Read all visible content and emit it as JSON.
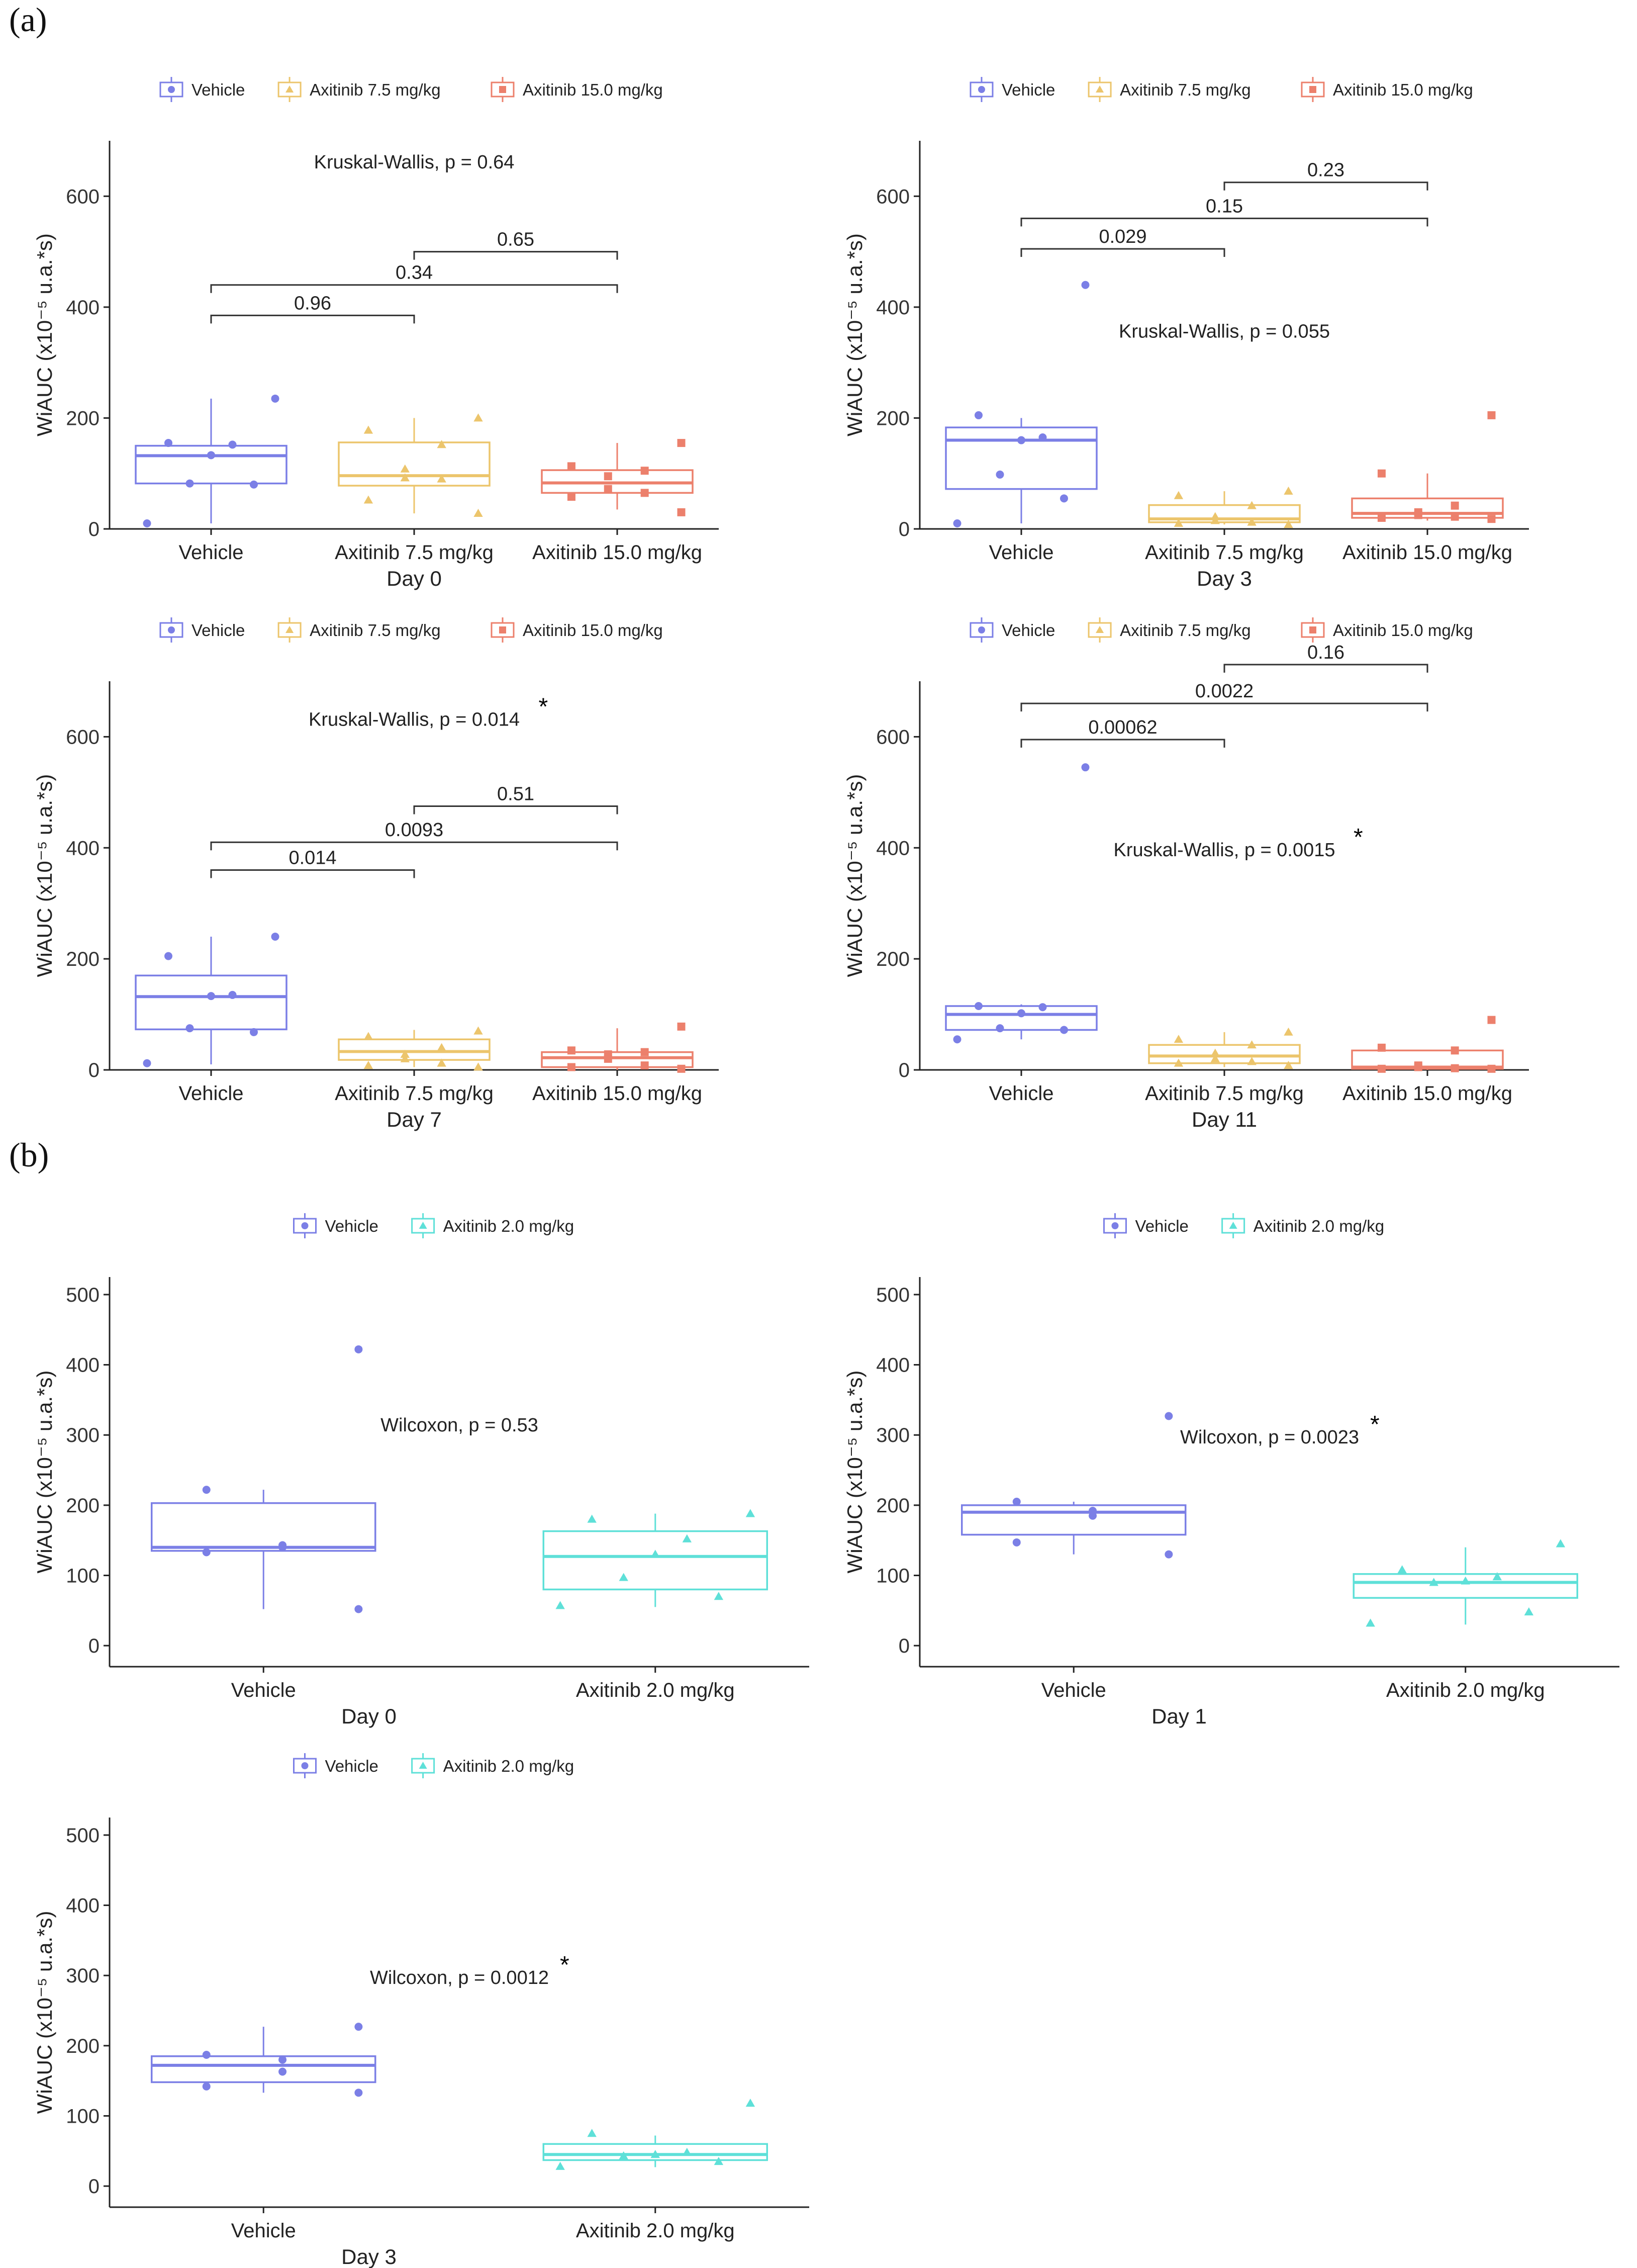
{
  "panels": [
    {
      "label": "(a)"
    },
    {
      "label": "(b)"
    }
  ],
  "chart_data": [
    {
      "type": "box",
      "panel": "a",
      "title": "",
      "xlabel": "Day 0",
      "ylabel": "WiAUC (x10⁻⁵ u.a.*s)",
      "ylim": [
        0,
        700
      ],
      "yticks": [
        0,
        200,
        400,
        600
      ],
      "legend_position": "top",
      "legend": [
        "Vehicle",
        "Axitinib 7.5 mg/kg",
        "Axitinib 15.0 mg/kg"
      ],
      "categories": [
        "Vehicle",
        "Axitinib 7.5 mg/kg",
        "Axitinib 15.0 mg/kg"
      ],
      "series_colors": [
        "#7b7fe6",
        "#ecc56c",
        "#ec806c"
      ],
      "markers": [
        "circle",
        "triangle",
        "square"
      ],
      "boxes": [
        {
          "q1": 82,
          "median": 132,
          "q3": 150,
          "whisker_low": 10,
          "whisker_high": 235,
          "points": [
            235,
            155,
            152,
            133,
            82,
            80,
            10
          ]
        },
        {
          "q1": 78,
          "median": 96,
          "q3": 156,
          "whisker_low": 28,
          "whisker_high": 200,
          "points": [
            200,
            178,
            152,
            108,
            92,
            90,
            52,
            28
          ]
        },
        {
          "q1": 65,
          "median": 83,
          "q3": 106,
          "whisker_low": 35,
          "whisker_high": 155,
          "points": [
            155,
            113,
            105,
            95,
            72,
            65,
            58,
            30
          ]
        }
      ],
      "test": "Kruskal-Wallis, p = 0.64",
      "test_y": 650,
      "significant": false,
      "comparisons": [
        {
          "from": 1,
          "to": 2,
          "p": "0.96",
          "y": 385
        },
        {
          "from": 1,
          "to": 3,
          "p": "0.34",
          "y": 440
        },
        {
          "from": 2,
          "to": 3,
          "p": "0.65",
          "y": 500
        }
      ]
    },
    {
      "type": "box",
      "panel": "a",
      "title": "",
      "xlabel": "Day 3",
      "ylabel": "WiAUC (x10⁻⁵ u.a.*s)",
      "ylim": [
        0,
        700
      ],
      "yticks": [
        0,
        200,
        400,
        600
      ],
      "legend_position": "top",
      "legend": [
        "Vehicle",
        "Axitinib 7.5 mg/kg",
        "Axitinib 15.0 mg/kg"
      ],
      "categories": [
        "Vehicle",
        "Axitinib 7.5 mg/kg",
        "Axitinib 15.0 mg/kg"
      ],
      "series_colors": [
        "#7b7fe6",
        "#ecc56c",
        "#ec806c"
      ],
      "markers": [
        "circle",
        "triangle",
        "square"
      ],
      "boxes": [
        {
          "q1": 72,
          "median": 160,
          "q3": 183,
          "whisker_low": 10,
          "whisker_high": 200,
          "points": [
            440,
            205,
            165,
            160,
            98,
            55,
            10
          ]
        },
        {
          "q1": 12,
          "median": 18,
          "q3": 43,
          "whisker_low": 8,
          "whisker_high": 68,
          "points": [
            68,
            60,
            42,
            22,
            15,
            12,
            10,
            8
          ]
        },
        {
          "q1": 20,
          "median": 28,
          "q3": 55,
          "whisker_low": 15,
          "whisker_high": 100,
          "points": [
            205,
            100,
            42,
            30,
            25,
            22,
            20,
            18
          ]
        }
      ],
      "test": "Kruskal-Wallis, p = 0.055",
      "test_y": 345,
      "significant": false,
      "comparisons": [
        {
          "from": 1,
          "to": 2,
          "p": "0.029",
          "y": 505
        },
        {
          "from": 1,
          "to": 3,
          "p": "0.15",
          "y": 560
        },
        {
          "from": 2,
          "to": 3,
          "p": "0.23",
          "y": 625
        }
      ]
    },
    {
      "type": "box",
      "panel": "a",
      "title": "",
      "xlabel": "Day 7",
      "ylabel": "WiAUC (x10⁻⁵ u.a.*s)",
      "ylim": [
        0,
        700
      ],
      "yticks": [
        0,
        200,
        400,
        600
      ],
      "legend_position": "top",
      "legend": [
        "Vehicle",
        "Axitinib 7.5 mg/kg",
        "Axitinib 15.0 mg/kg"
      ],
      "categories": [
        "Vehicle",
        "Axitinib 7.5 mg/kg",
        "Axitinib 15.0 mg/kg"
      ],
      "series_colors": [
        "#7b7fe6",
        "#ecc56c",
        "#ec806c"
      ],
      "markers": [
        "circle",
        "triangle",
        "square"
      ],
      "boxes": [
        {
          "q1": 73,
          "median": 132,
          "q3": 170,
          "whisker_low": 10,
          "whisker_high": 240,
          "points": [
            240,
            205,
            135,
            133,
            75,
            68,
            12
          ]
        },
        {
          "q1": 18,
          "median": 33,
          "q3": 55,
          "whisker_low": 5,
          "whisker_high": 72,
          "points": [
            70,
            60,
            40,
            28,
            20,
            12,
            8,
            5
          ]
        },
        {
          "q1": 5,
          "median": 22,
          "q3": 32,
          "whisker_low": 0,
          "whisker_high": 75,
          "points": [
            78,
            35,
            32,
            28,
            20,
            8,
            5,
            2
          ]
        }
      ],
      "test": "Kruskal-Wallis, p = 0.014",
      "test_y": 620,
      "significant": true,
      "star": "*",
      "comparisons": [
        {
          "from": 1,
          "to": 2,
          "p": "0.014",
          "y": 360
        },
        {
          "from": 1,
          "to": 3,
          "p": "0.0093",
          "y": 410
        },
        {
          "from": 2,
          "to": 3,
          "p": "0.51",
          "y": 475
        }
      ]
    },
    {
      "type": "box",
      "panel": "a",
      "title": "",
      "xlabel": "Day 11",
      "ylabel": "WiAUC (x10⁻⁵ u.a.*s)",
      "ylim": [
        0,
        700
      ],
      "yticks": [
        0,
        200,
        400,
        600
      ],
      "legend_position": "top",
      "legend": [
        "Vehicle",
        "Axitinib 7.5 mg/kg",
        "Axitinib 15.0 mg/kg"
      ],
      "categories": [
        "Vehicle",
        "Axitinib 7.5 mg/kg",
        "Axitinib 15.0 mg/kg"
      ],
      "series_colors": [
        "#7b7fe6",
        "#ecc56c",
        "#ec806c"
      ],
      "markers": [
        "circle",
        "triangle",
        "square"
      ],
      "boxes": [
        {
          "q1": 72,
          "median": 100,
          "q3": 115,
          "whisker_low": 55,
          "whisker_high": 118,
          "points": [
            545,
            115,
            113,
            102,
            75,
            72,
            55
          ]
        },
        {
          "q1": 12,
          "median": 25,
          "q3": 45,
          "whisker_low": 5,
          "whisker_high": 68,
          "points": [
            68,
            55,
            45,
            30,
            20,
            15,
            12,
            8
          ]
        },
        {
          "q1": 2,
          "median": 5,
          "q3": 35,
          "whisker_low": 0,
          "whisker_high": 35,
          "points": [
            90,
            40,
            35,
            8,
            5,
            3,
            2,
            2
          ]
        }
      ],
      "test": "Kruskal-Wallis, p = 0.0015",
      "test_y": 385,
      "significant": true,
      "star": "*",
      "comparisons": [
        {
          "from": 1,
          "to": 2,
          "p": "0.00062",
          "y": 595
        },
        {
          "from": 1,
          "to": 3,
          "p": "0.0022",
          "y": 660
        },
        {
          "from": 2,
          "to": 3,
          "p": "0.16",
          "y": 730
        }
      ]
    },
    {
      "type": "box",
      "panel": "b",
      "title": "",
      "xlabel": "Day 0",
      "ylabel": "WiAUC (x10⁻⁵ u.a.*s)",
      "ylim": [
        -30,
        525
      ],
      "yticks": [
        0,
        100,
        200,
        300,
        400,
        500
      ],
      "legend_position": "top",
      "legend": [
        "Vehicle",
        "Axitinib 2.0 mg/kg"
      ],
      "categories": [
        "Vehicle",
        "Axitinib 2.0 mg/kg"
      ],
      "series_colors": [
        "#7b7fe6",
        "#5ee0d8"
      ],
      "markers": [
        "circle",
        "triangle"
      ],
      "boxes": [
        {
          "q1": 135,
          "median": 140,
          "q3": 203,
          "whisker_low": 52,
          "whisker_high": 222,
          "points": [
            422,
            222,
            143,
            140,
            133,
            52
          ]
        },
        {
          "q1": 80,
          "median": 127,
          "q3": 163,
          "whisker_low": 55,
          "whisker_high": 188,
          "points": [
            188,
            180,
            152,
            130,
            97,
            70,
            57
          ]
        }
      ],
      "test": "Wilcoxon, p = 0.53",
      "test_y": 305,
      "significant": false,
      "comparisons": []
    },
    {
      "type": "box",
      "panel": "b",
      "title": "",
      "xlabel": "Day 1",
      "ylabel": "WiAUC (x10⁻⁵ u.a.*s)",
      "ylim": [
        -30,
        525
      ],
      "yticks": [
        0,
        100,
        200,
        300,
        400,
        500
      ],
      "legend_position": "top",
      "legend": [
        "Vehicle",
        "Axitinib 2.0 mg/kg"
      ],
      "categories": [
        "Vehicle",
        "Axitinib 2.0 mg/kg"
      ],
      "series_colors": [
        "#7b7fe6",
        "#5ee0d8"
      ],
      "markers": [
        "circle",
        "triangle"
      ],
      "boxes": [
        {
          "q1": 158,
          "median": 190,
          "q3": 200,
          "whisker_low": 130,
          "whisker_high": 205,
          "points": [
            327,
            205,
            192,
            185,
            147,
            130
          ]
        },
        {
          "q1": 68,
          "median": 90,
          "q3": 102,
          "whisker_low": 30,
          "whisker_high": 140,
          "points": [
            145,
            108,
            98,
            92,
            90,
            48,
            32
          ]
        }
      ],
      "test": "Wilcoxon, p = 0.0023",
      "test_y": 288,
      "significant": true,
      "star": "*",
      "comparisons": []
    },
    {
      "type": "box",
      "panel": "b",
      "title": "",
      "xlabel": "Day 3",
      "ylabel": "WiAUC (x10⁻⁵ u.a.*s)",
      "ylim": [
        -30,
        525
      ],
      "yticks": [
        0,
        100,
        200,
        300,
        400,
        500
      ],
      "legend_position": "top",
      "legend": [
        "Vehicle",
        "Axitinib 2.0 mg/kg"
      ],
      "categories": [
        "Vehicle",
        "Axitinib 2.0 mg/kg"
      ],
      "series_colors": [
        "#7b7fe6",
        "#5ee0d8"
      ],
      "markers": [
        "circle",
        "triangle"
      ],
      "boxes": [
        {
          "q1": 148,
          "median": 172,
          "q3": 185,
          "whisker_low": 133,
          "whisker_high": 227,
          "points": [
            227,
            187,
            180,
            163,
            142,
            133
          ]
        },
        {
          "q1": 37,
          "median": 45,
          "q3": 60,
          "whisker_low": 27,
          "whisker_high": 72,
          "points": [
            118,
            75,
            48,
            45,
            43,
            35,
            28
          ]
        }
      ],
      "test": "Wilcoxon, p = 0.0012",
      "test_y": 288,
      "significant": true,
      "star": "*",
      "comparisons": []
    }
  ]
}
